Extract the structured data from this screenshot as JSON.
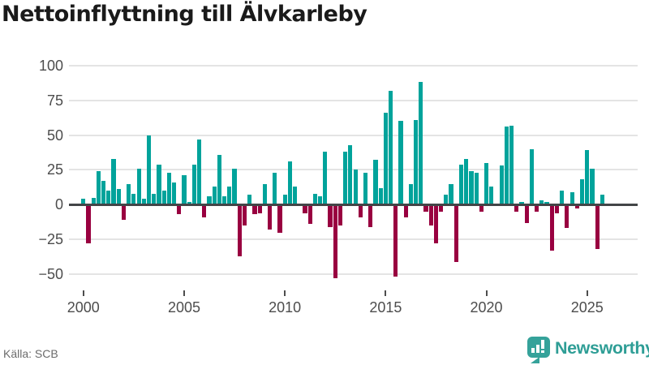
{
  "title": "Nettoinflyttning till Älvkarleby",
  "source": "Källa: SCB",
  "brand": {
    "name": "Newsworthy"
  },
  "colors": {
    "positive": "#00a39b",
    "negative": "#990040",
    "grid": "#e4e4e4",
    "zero_line": "#434547",
    "title_text": "#1a1a1a",
    "axis_text": "#4d4d4d",
    "source_text": "#6b6b6b",
    "brand_teal": "#2f9e96",
    "brand_icon_teal": "#35a29a"
  },
  "chart_data": {
    "type": "bar",
    "title": "Nettoinflyttning till Älvkarleby",
    "frequency": "quarterly",
    "start": "2000Q1",
    "end": "2025Q4",
    "x_tick_labels": [
      "2000",
      "2005",
      "2010",
      "2015",
      "2020",
      "2025"
    ],
    "x_tick_every_n_bars": 20,
    "y_ticks": [
      100,
      75,
      50,
      25,
      0,
      -25,
      -50
    ],
    "ylim": [
      -60,
      108
    ],
    "grid": true,
    "legend": false,
    "series": [
      {
        "name": "Nettoinflyttning",
        "values": [
          4,
          -28,
          5,
          24,
          17,
          10,
          33,
          11,
          -11,
          15,
          8,
          26,
          4,
          50,
          8,
          29,
          10,
          23,
          16,
          -7,
          21,
          2,
          29,
          47,
          -9,
          6,
          13,
          36,
          6,
          13,
          26,
          -37,
          -15,
          7,
          -7,
          -6,
          15,
          -18,
          23,
          -20,
          7,
          31,
          13,
          0,
          -6,
          -14,
          8,
          6,
          38,
          -16,
          -53,
          -15,
          38,
          43,
          25,
          -9,
          23,
          -16,
          32,
          12,
          66,
          82,
          -52,
          60,
          -9,
          15,
          61,
          88,
          -5,
          -15,
          -28,
          -5,
          7,
          15,
          -41,
          29,
          33,
          24,
          23,
          -5,
          30,
          13,
          0,
          28,
          56,
          57,
          -5,
          2,
          -13,
          40,
          -5,
          3,
          2,
          -33,
          -6,
          10,
          -17,
          9,
          -3,
          18,
          39,
          26,
          -32,
          7
        ]
      }
    ]
  }
}
